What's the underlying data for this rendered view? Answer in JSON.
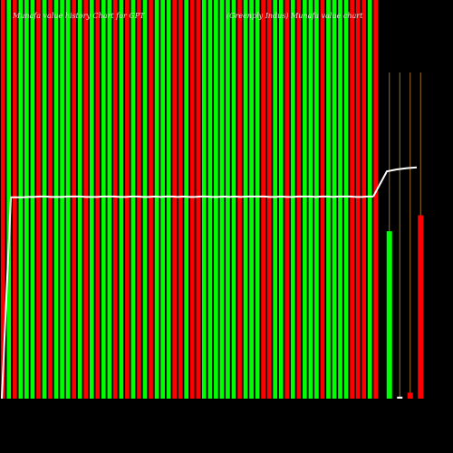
{
  "header": {
    "title": "Munafa value history Chart for GPT",
    "subtitle": "(Greenply Indus) Munafa value chart"
  },
  "colors": {
    "background": "#000000",
    "up": "#00ff00",
    "down": "#ff0000",
    "line": "#ffffff",
    "marker": "#a0711b"
  },
  "chart_data": {
    "type": "bar",
    "bar_colors": [
      "red",
      "green",
      "red",
      "green",
      "green",
      "green",
      "red",
      "green",
      "red",
      "green",
      "green",
      "green",
      "red",
      "green",
      "red",
      "green",
      "red",
      "green",
      "green",
      "red",
      "green",
      "red",
      "green",
      "red",
      "green",
      "red",
      "green",
      "green",
      "green",
      "red",
      "red",
      "green",
      "red",
      "red",
      "green",
      "green",
      "green",
      "green",
      "green",
      "green",
      "red",
      "green",
      "green",
      "green",
      "red",
      "red",
      "green",
      "green",
      "red",
      "green",
      "red",
      "green",
      "green",
      "green",
      "red",
      "green",
      "green",
      "green",
      "green",
      "red",
      "red",
      "red",
      "green",
      "red"
    ],
    "values": [
      100,
      100,
      100,
      100,
      100,
      100,
      100,
      100,
      100,
      100,
      100,
      100,
      100,
      100,
      100,
      100,
      100,
      100,
      100,
      100,
      100,
      100,
      100,
      100,
      100,
      100,
      100,
      100,
      100,
      100,
      100,
      100,
      100,
      100,
      100,
      100,
      100,
      100,
      100,
      100,
      100,
      100,
      100,
      100,
      100,
      100,
      100,
      100,
      100,
      100,
      100,
      100,
      100,
      100,
      100,
      100,
      100,
      100,
      100,
      100,
      100,
      100,
      100,
      100
    ],
    "line": [
      50,
      50.5,
      50.5,
      50.5,
      50.6,
      50.6,
      50.7,
      50.7,
      50.6,
      50.6,
      50.6,
      50.7,
      50.7,
      50.7,
      50.6,
      50.6,
      50.6,
      50.7,
      50.7,
      50.7,
      50.6,
      50.6,
      50.7,
      50.7,
      50.6,
      50.6,
      50.7,
      50.6,
      50.7,
      50.7,
      50.6,
      50.7,
      50.6,
      50.6,
      50.7,
      50.7,
      50.6,
      50.6,
      50.7,
      50.6,
      50.7,
      50.6,
      50.7,
      50.7,
      50.7,
      50.7,
      50.6,
      50.6,
      50.7,
      50.6,
      50.6,
      50.7,
      50.7,
      50.7,
      50.6,
      50.7,
      50.7,
      50.6,
      50.7,
      50.7,
      50.7,
      50.6,
      50.6,
      50.7,
      50.7
    ],
    "recent_bars": [
      {
        "color": "green",
        "value": 42
      },
      {
        "color": "white",
        "value": 0.5
      },
      {
        "color": "red",
        "value": 1.5
      },
      {
        "color": "red",
        "value": 46
      }
    ],
    "recent_line": [
      57,
      57.5,
      57.8,
      58
    ],
    "ylim": [
      0,
      100
    ]
  }
}
